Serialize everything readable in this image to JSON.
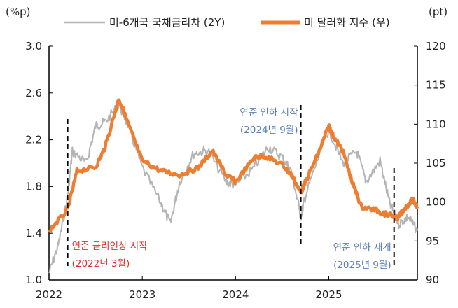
{
  "chart_data": {
    "type": "line",
    "title": "",
    "left_axis": {
      "unit_label": "(%p)",
      "ylim": [
        1.0,
        3.0
      ],
      "ticks": [
        "1.0",
        "1.4",
        "1.8",
        "2.2",
        "2.6",
        "3.0"
      ]
    },
    "right_axis": {
      "unit_label": "(pt)",
      "ylim": [
        90,
        120
      ],
      "ticks": [
        "90",
        "95",
        "100",
        "105",
        "110",
        "115",
        "120"
      ]
    },
    "x_axis": {
      "xlim": [
        2022.0,
        2025.95
      ],
      "ticks": [
        "2022",
        "2023",
        "2024",
        "2025"
      ]
    },
    "grid": false,
    "legend_placement": "top",
    "series": [
      {
        "name": "미-6개국 국채금리차 (2Y)",
        "axis": "left",
        "color": "#b4b4b4",
        "x": [
          2022.0,
          2022.1,
          2022.2,
          2022.25,
          2022.4,
          2022.5,
          2022.6,
          2022.75,
          2022.85,
          2023.0,
          2023.2,
          2023.3,
          2023.4,
          2023.55,
          2023.7,
          2023.9,
          2024.0,
          2024.2,
          2024.35,
          2024.5,
          2024.6,
          2024.7,
          2024.75,
          2024.9,
          2025.0,
          2025.15,
          2025.3,
          2025.4,
          2025.55,
          2025.65,
          2025.75,
          2025.85,
          2025.95
        ],
        "y": [
          1.06,
          1.3,
          1.72,
          2.1,
          2.0,
          2.32,
          2.35,
          2.5,
          2.32,
          1.96,
          1.66,
          1.48,
          1.84,
          2.08,
          2.11,
          1.84,
          1.81,
          1.96,
          2.14,
          2.05,
          1.93,
          1.54,
          1.72,
          2.08,
          2.29,
          2.0,
          2.1,
          1.84,
          2.02,
          1.66,
          1.48,
          1.54,
          1.42
        ]
      },
      {
        "name": "미 달러화 지수 (우)",
        "axis": "right",
        "color": "#ed7d31",
        "x": [
          2022.0,
          2022.2,
          2022.3,
          2022.5,
          2022.6,
          2022.75,
          2022.85,
          2023.0,
          2023.2,
          2023.4,
          2023.6,
          2023.75,
          2023.9,
          2024.0,
          2024.2,
          2024.3,
          2024.5,
          2024.6,
          2024.7,
          2024.75,
          2024.9,
          2025.0,
          2025.05,
          2025.15,
          2025.25,
          2025.35,
          2025.5,
          2025.6,
          2025.75,
          2025.8,
          2025.9,
          2025.95
        ],
        "y": [
          96.3,
          99,
          104,
          104.5,
          107,
          113.3,
          110,
          105.3,
          104,
          103.5,
          104.4,
          106.6,
          103.5,
          102.6,
          105.7,
          106,
          104.8,
          103.5,
          101.2,
          102.6,
          106.6,
          109.8,
          108.4,
          106.6,
          102.6,
          99.4,
          99,
          98.5,
          98,
          99,
          100.3,
          99.4
        ]
      }
    ],
    "annotations": [
      {
        "x": 2022.2,
        "lines": [
          "연준 금리인상  시작",
          "(2022년 3월)"
        ],
        "color": "#e03030"
      },
      {
        "x": 2024.7,
        "lines": [
          "연준  인하  시작",
          "(2024년 9월)"
        ],
        "color": "#5b7fb8"
      },
      {
        "x": 2025.7,
        "lines": [
          "연준  인하  재개",
          "(2025년 9월)"
        ],
        "color": "#5b7fb8"
      }
    ]
  }
}
